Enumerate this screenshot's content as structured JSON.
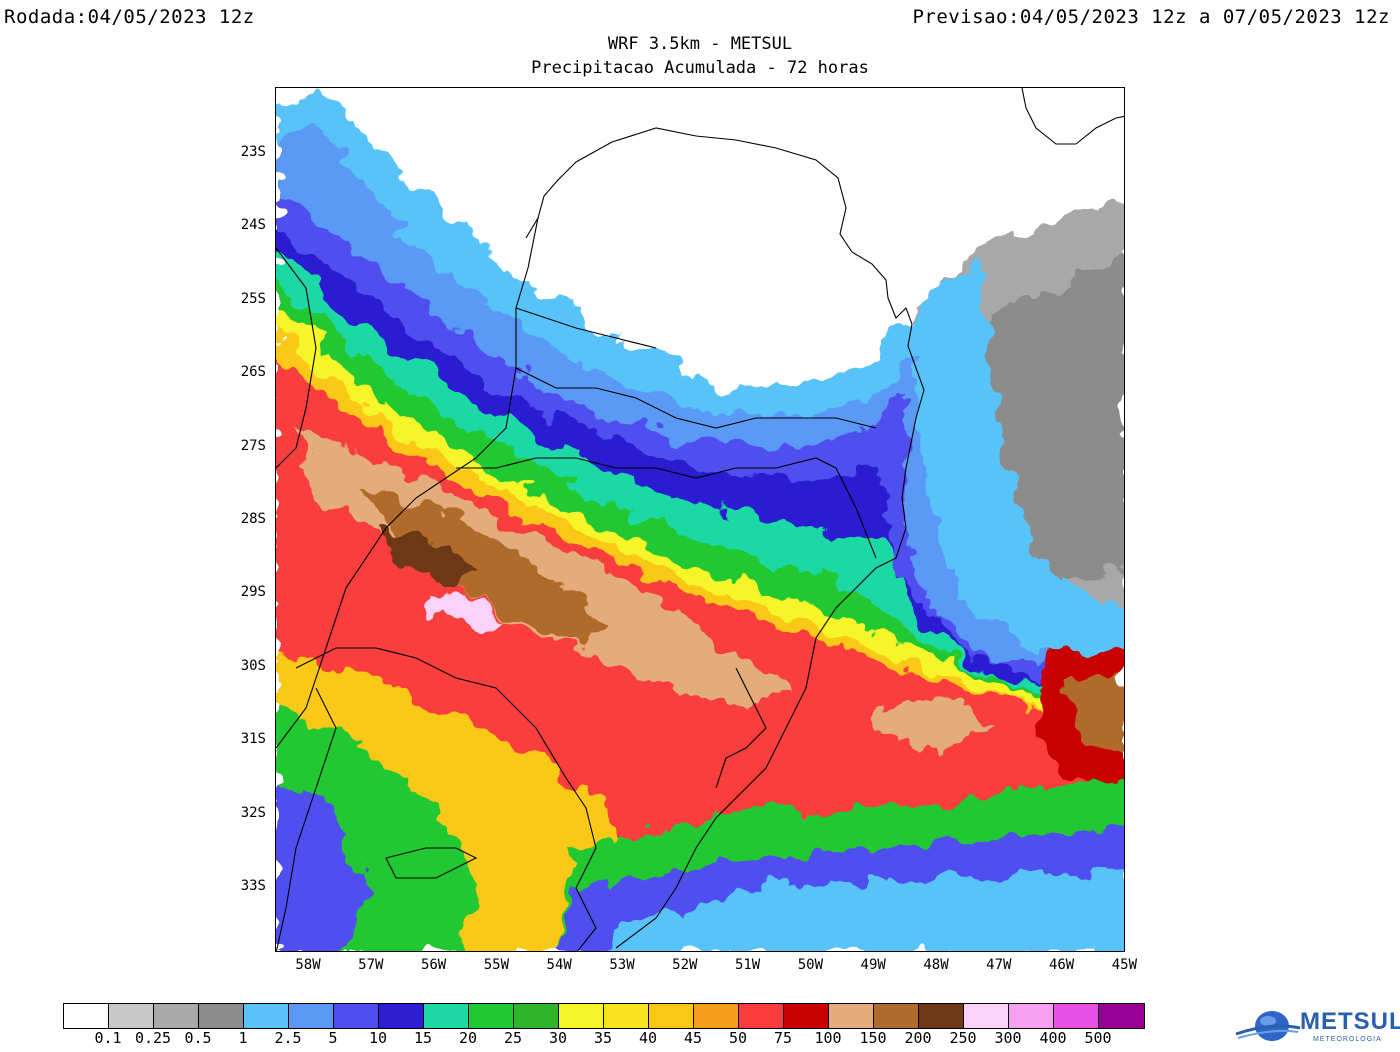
{
  "header": {
    "run_label": "Rodada:",
    "run_value": "04/05/2023 12z",
    "forecast_label": "Previsao:",
    "forecast_value": "04/05/2023 12z a 07/05/2023 12z"
  },
  "title": "WRF 3.5km - METSUL",
  "subtitle": "Precipitacao Acumulada - 72 horas",
  "map": {
    "lat_labels": [
      "23S",
      "24S",
      "25S",
      "26S",
      "27S",
      "28S",
      "29S",
      "30S",
      "31S",
      "32S",
      "33S"
    ],
    "lon_labels": [
      "58W",
      "57W",
      "56W",
      "55W",
      "54W",
      "53W",
      "52W",
      "51W",
      "50W",
      "49W",
      "48W",
      "47W",
      "46W",
      "45W"
    ]
  },
  "legend": {
    "colors": [
      "#ffffff",
      "#c8c8c8",
      "#a8a8a8",
      "#8c8c8c",
      "#59c3f9",
      "#5a99f6",
      "#4f4ff0",
      "#2c1fd1",
      "#1ed8a5",
      "#22c832",
      "#2eb52a",
      "#f5f52a",
      "#fae11e",
      "#fac814",
      "#f69b1e",
      "#fa3c3c",
      "#c80000",
      "#e3ac7a",
      "#b06a2c",
      "#6e3914",
      "#fad2fa",
      "#f5a0f0",
      "#e650e6",
      "#960096"
    ],
    "ticks": [
      "0.1",
      "0.25",
      "0.5",
      "1",
      "2.5",
      "5",
      "10",
      "15",
      "20",
      "25",
      "30",
      "35",
      "40",
      "45",
      "50",
      "75",
      "100",
      "150",
      "200",
      "250",
      "300",
      "400",
      "500"
    ]
  },
  "logo": {
    "name": "METSUL",
    "tagline": "METEOROLOGIA"
  }
}
